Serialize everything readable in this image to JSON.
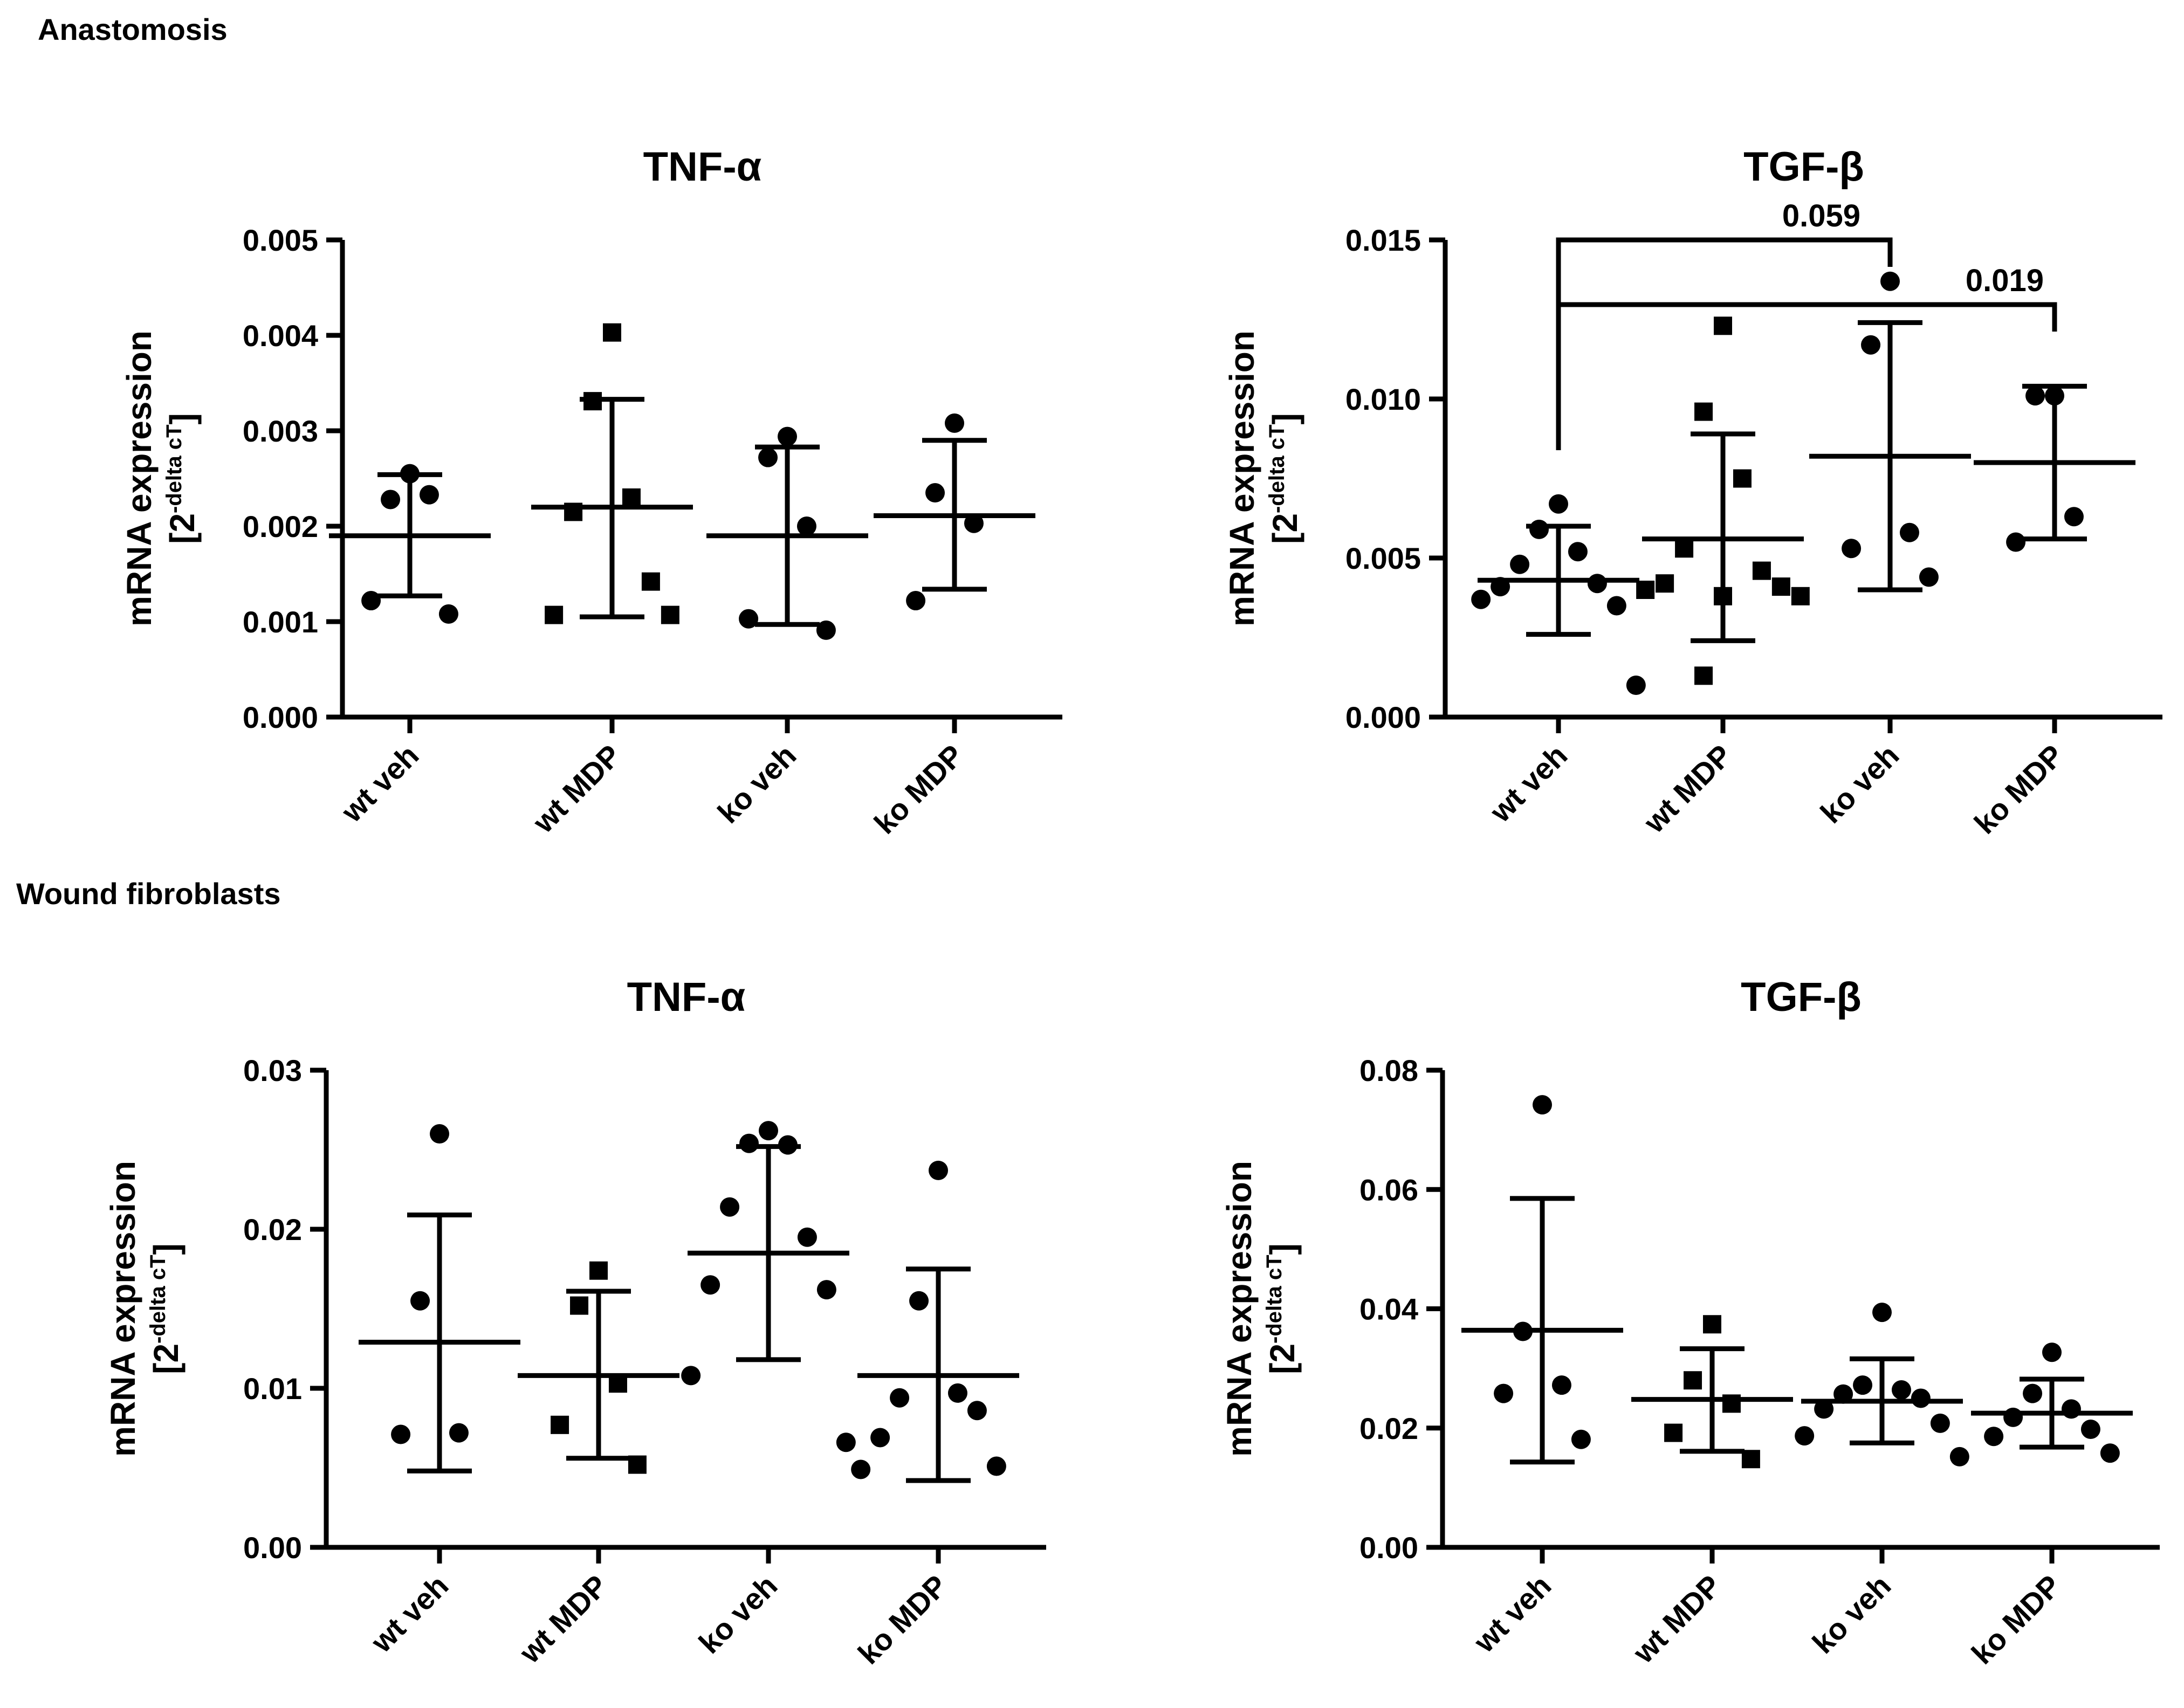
{
  "sections": {
    "top": "Anastomosis",
    "bottom": "Wound fibroblasts"
  },
  "chart_data": [
    {
      "type": "scatter",
      "panel": "anastomosis-tnf",
      "title": "TNF-α",
      "ylabel": "mRNA expression",
      "ylabel_unit_base": "[2",
      "ylabel_unit_exp": "-delta cT",
      "ylabel_unit_close": "]",
      "ylim": [
        0,
        0.005
      ],
      "yticks": [
        "0.000",
        "0.001",
        "0.002",
        "0.003",
        "0.004",
        "0.005"
      ],
      "categories": [
        "wt veh",
        "wt MDP",
        "ko veh",
        "ko MDP"
      ],
      "series": [
        {
          "category": "wt veh",
          "marker": "circle",
          "points": [
            0.00255,
            0.00228,
            0.00233,
            0.00122,
            0.00108
          ],
          "mean": 0.0019,
          "sd_low": 0.00127,
          "sd_high": 0.00254
        },
        {
          "category": "wt MDP",
          "marker": "square",
          "points": [
            0.00403,
            0.00331,
            0.0023,
            0.00215,
            0.00142,
            0.00107,
            0.00107
          ],
          "mean": 0.0022,
          "sd_low": 0.00105,
          "sd_high": 0.00333
        },
        {
          "category": "ko veh",
          "marker": "circle",
          "points": [
            0.00294,
            0.00272,
            0.002,
            0.00103,
            0.00091
          ],
          "mean": 0.0019,
          "sd_low": 0.00097,
          "sd_high": 0.00283
        },
        {
          "category": "ko MDP",
          "marker": "circle",
          "points": [
            0.00308,
            0.00235,
            0.00203,
            0.00122
          ],
          "mean": 0.00211,
          "sd_low": 0.00134,
          "sd_high": 0.0029
        }
      ]
    },
    {
      "type": "scatter",
      "panel": "anastomosis-tgf",
      "title": "TGF-β",
      "ylabel": "mRNA expression",
      "ylabel_unit_base": "[2",
      "ylabel_unit_exp": "-delta cT",
      "ylabel_unit_close": "]",
      "ylim": [
        0,
        0.015
      ],
      "yticks": [
        "0.000",
        "0.005",
        "0.010",
        "0.015"
      ],
      "categories": [
        "wt veh",
        "wt MDP",
        "ko veh",
        "ko MDP"
      ],
      "series": [
        {
          "category": "wt veh",
          "marker": "circle",
          "points": [
            0.0067,
            0.0059,
            0.0052,
            0.0048,
            0.0042,
            0.0041,
            0.0035,
            0.0037,
            0.001
          ],
          "mean": 0.0043,
          "sd_low": 0.0026,
          "sd_high": 0.006
        },
        {
          "category": "wt MDP",
          "marker": "square",
          "points": [
            0.0123,
            0.0096,
            0.0075,
            0.0053,
            0.0046,
            0.0042,
            0.0041,
            0.004,
            0.0038,
            0.0038,
            0.0013
          ],
          "mean": 0.0056,
          "sd_low": 0.0024,
          "sd_high": 0.0089
        },
        {
          "category": "ko veh",
          "marker": "circle",
          "points": [
            0.0137,
            0.0117,
            0.0058,
            0.0053,
            0.0044
          ],
          "mean": 0.0082,
          "sd_low": 0.004,
          "sd_high": 0.0124
        },
        {
          "category": "ko MDP",
          "marker": "circle",
          "points": [
            0.0101,
            0.0101,
            0.0063,
            0.0055
          ],
          "mean": 0.008,
          "sd_low": 0.0056,
          "sd_high": 0.0104
        }
      ],
      "brackets": [
        {
          "from": "wt veh",
          "to": "ko veh",
          "label": "0.059"
        },
        {
          "from": "wt veh",
          "to": "ko MDP",
          "label": "0.019"
        }
      ]
    },
    {
      "type": "scatter",
      "panel": "fibroblasts-tnf",
      "title": "TNF-α",
      "ylabel": "mRNA expression",
      "ylabel_unit_base": "[2",
      "ylabel_unit_exp": "-delta cT",
      "ylabel_unit_close": "]",
      "ylim": [
        0,
        0.03
      ],
      "yticks": [
        "0.00",
        "0.01",
        "0.02",
        "0.03"
      ],
      "categories": [
        "wt veh",
        "wt MDP",
        "ko veh",
        "ko MDP"
      ],
      "series": [
        {
          "category": "wt veh",
          "marker": "circle",
          "points": [
            0.026,
            0.0155,
            0.0072,
            0.0071
          ],
          "mean": 0.0129,
          "sd_low": 0.0048,
          "sd_high": 0.0209
        },
        {
          "category": "wt MDP",
          "marker": "square",
          "points": [
            0.0174,
            0.0152,
            0.0103,
            0.0077,
            0.0052
          ],
          "mean": 0.0108,
          "sd_low": 0.0056,
          "sd_high": 0.0161
        },
        {
          "category": "ko veh",
          "marker": "circle",
          "points": [
            0.0262,
            0.0254,
            0.0253,
            0.0214,
            0.0195,
            0.0165,
            0.0162,
            0.0108,
            0.0066
          ],
          "mean": 0.0185,
          "sd_low": 0.0118,
          "sd_high": 0.0252
        },
        {
          "category": "ko MDP",
          "marker": "circle",
          "points": [
            0.0237,
            0.0155,
            0.0097,
            0.0094,
            0.0086,
            0.0069,
            0.0051,
            0.0049
          ],
          "mean": 0.0108,
          "sd_low": 0.0042,
          "sd_high": 0.0175
        }
      ]
    },
    {
      "type": "scatter",
      "panel": "fibroblasts-tgf",
      "title": "TGF-β",
      "ylabel": "mRNA expression",
      "ylabel_unit_base": "[2",
      "ylabel_unit_exp": "-delta cT",
      "ylabel_unit_close": "]",
      "ylim": [
        0,
        0.08
      ],
      "yticks": [
        "0.00",
        "0.02",
        "0.04",
        "0.06",
        "0.08"
      ],
      "categories": [
        "wt veh",
        "wt MDP",
        "ko veh",
        "ko MDP"
      ],
      "series": [
        {
          "category": "wt veh",
          "marker": "circle",
          "points": [
            0.0742,
            0.0362,
            0.0272,
            0.0258,
            0.0181
          ],
          "mean": 0.0364,
          "sd_low": 0.0143,
          "sd_high": 0.0585
        },
        {
          "category": "wt MDP",
          "marker": "square",
          "points": [
            0.0374,
            0.028,
            0.0241,
            0.0192,
            0.0148
          ],
          "mean": 0.0248,
          "sd_low": 0.0161,
          "sd_high": 0.0333
        },
        {
          "category": "ko veh",
          "marker": "circle",
          "points": [
            0.0394,
            0.0272,
            0.0264,
            0.0257,
            0.025,
            0.0232,
            0.0208,
            0.0187,
            0.0152
          ],
          "mean": 0.0245,
          "sd_low": 0.0175,
          "sd_high": 0.0316
        },
        {
          "category": "ko MDP",
          "marker": "circle",
          "points": [
            0.0327,
            0.0258,
            0.0232,
            0.0218,
            0.0198,
            0.0186,
            0.0158
          ],
          "mean": 0.0225,
          "sd_low": 0.0168,
          "sd_high": 0.0282
        }
      ]
    }
  ]
}
